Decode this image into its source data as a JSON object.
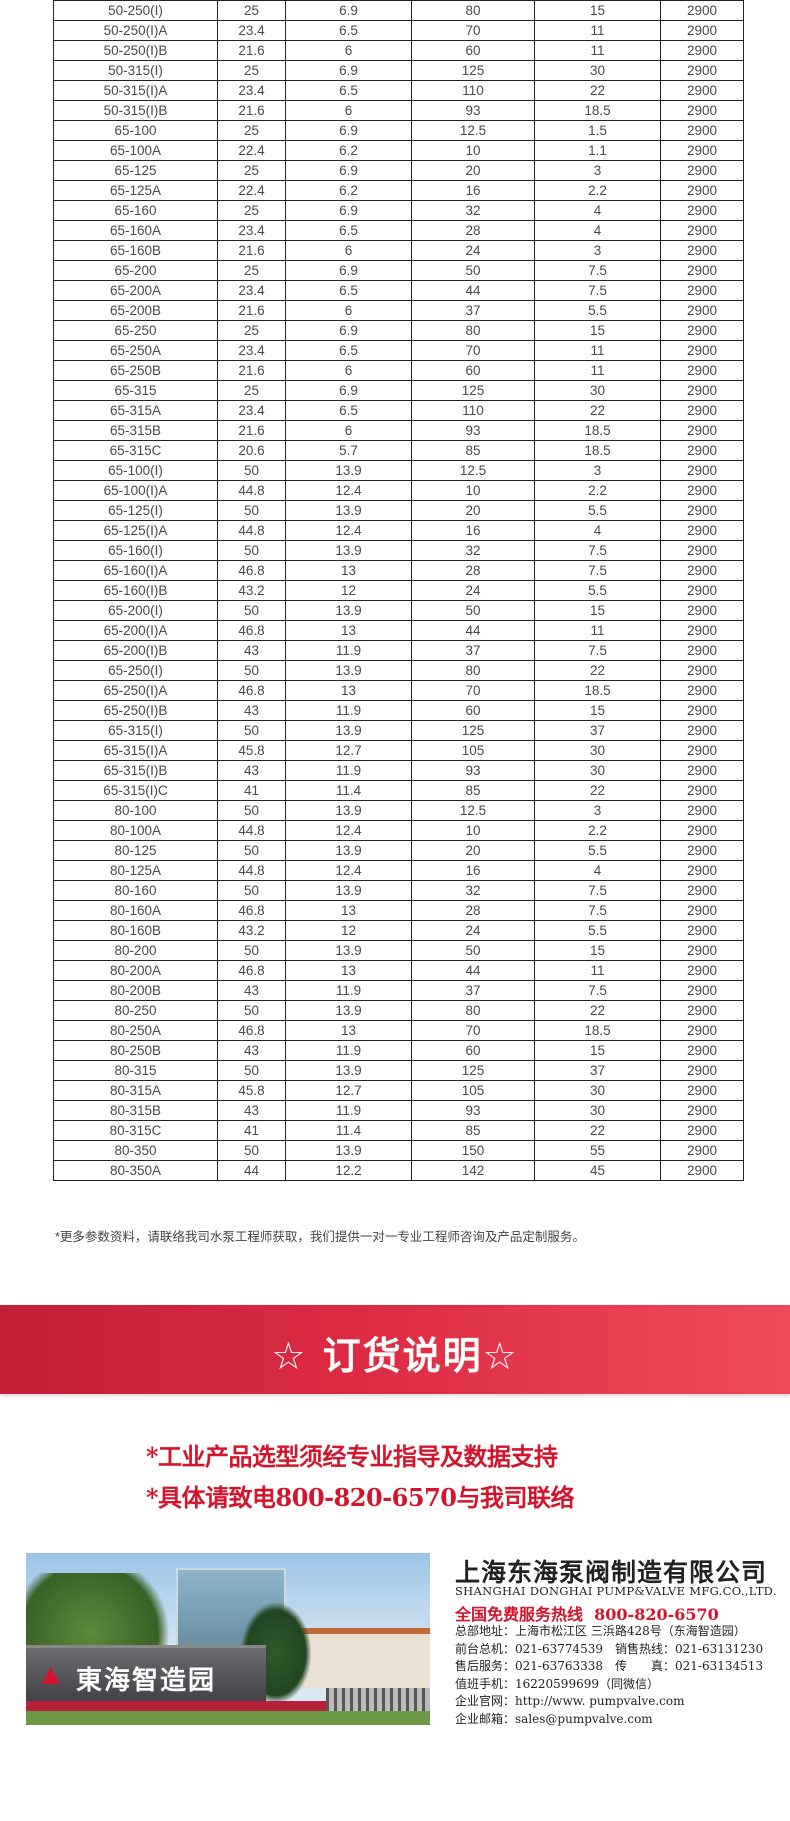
{
  "table": {
    "rows": [
      [
        "50-250(I)",
        "25",
        "6.9",
        "80",
        "15",
        "2900"
      ],
      [
        "50-250(I)A",
        "23.4",
        "6.5",
        "70",
        "11",
        "2900"
      ],
      [
        "50-250(I)B",
        "21.6",
        "6",
        "60",
        "11",
        "2900"
      ],
      [
        "50-315(I)",
        "25",
        "6.9",
        "125",
        "30",
        "2900"
      ],
      [
        "50-315(I)A",
        "23.4",
        "6.5",
        "110",
        "22",
        "2900"
      ],
      [
        "50-315(I)B",
        "21.6",
        "6",
        "93",
        "18.5",
        "2900"
      ],
      [
        "65-100",
        "25",
        "6.9",
        "12.5",
        "1.5",
        "2900"
      ],
      [
        "65-100A",
        "22.4",
        "6.2",
        "10",
        "1.1",
        "2900"
      ],
      [
        "65-125",
        "25",
        "6.9",
        "20",
        "3",
        "2900"
      ],
      [
        "65-125A",
        "22.4",
        "6.2",
        "16",
        "2.2",
        "2900"
      ],
      [
        "65-160",
        "25",
        "6.9",
        "32",
        "4",
        "2900"
      ],
      [
        "65-160A",
        "23.4",
        "6.5",
        "28",
        "4",
        "2900"
      ],
      [
        "65-160B",
        "21.6",
        "6",
        "24",
        "3",
        "2900"
      ],
      [
        "65-200",
        "25",
        "6.9",
        "50",
        "7.5",
        "2900"
      ],
      [
        "65-200A",
        "23.4",
        "6.5",
        "44",
        "7.5",
        "2900"
      ],
      [
        "65-200B",
        "21.6",
        "6",
        "37",
        "5.5",
        "2900"
      ],
      [
        "65-250",
        "25",
        "6.9",
        "80",
        "15",
        "2900"
      ],
      [
        "65-250A",
        "23.4",
        "6.5",
        "70",
        "11",
        "2900"
      ],
      [
        "65-250B",
        "21.6",
        "6",
        "60",
        "11",
        "2900"
      ],
      [
        "65-315",
        "25",
        "6.9",
        "125",
        "30",
        "2900"
      ],
      [
        "65-315A",
        "23.4",
        "6.5",
        "110",
        "22",
        "2900"
      ],
      [
        "65-315B",
        "21.6",
        "6",
        "93",
        "18.5",
        "2900"
      ],
      [
        "65-315C",
        "20.6",
        "5.7",
        "85",
        "18.5",
        "2900"
      ],
      [
        "65-100(I)",
        "50",
        "13.9",
        "12.5",
        "3",
        "2900"
      ],
      [
        "65-100(I)A",
        "44.8",
        "12.4",
        "10",
        "2.2",
        "2900"
      ],
      [
        "65-125(I)",
        "50",
        "13.9",
        "20",
        "5.5",
        "2900"
      ],
      [
        "65-125(I)A",
        "44.8",
        "12.4",
        "16",
        "4",
        "2900"
      ],
      [
        "65-160(I)",
        "50",
        "13.9",
        "32",
        "7.5",
        "2900"
      ],
      [
        "65-160(I)A",
        "46.8",
        "13",
        "28",
        "7.5",
        "2900"
      ],
      [
        "65-160(I)B",
        "43.2",
        "12",
        "24",
        "5.5",
        "2900"
      ],
      [
        "65-200(I)",
        "50",
        "13.9",
        "50",
        "15",
        "2900"
      ],
      [
        "65-200(I)A",
        "46.8",
        "13",
        "44",
        "11",
        "2900"
      ],
      [
        "65-200(I)B",
        "43",
        "11.9",
        "37",
        "7.5",
        "2900"
      ],
      [
        "65-250(I)",
        "50",
        "13.9",
        "80",
        "22",
        "2900"
      ],
      [
        "65-250(I)A",
        "46.8",
        "13",
        "70",
        "18.5",
        "2900"
      ],
      [
        "65-250(I)B",
        "43",
        "11.9",
        "60",
        "15",
        "2900"
      ],
      [
        "65-315(I)",
        "50",
        "13.9",
        "125",
        "37",
        "2900"
      ],
      [
        "65-315(I)A",
        "45.8",
        "12.7",
        "105",
        "30",
        "2900"
      ],
      [
        "65-315(I)B",
        "43",
        "11.9",
        "93",
        "30",
        "2900"
      ],
      [
        "65-315(I)C",
        "41",
        "11.4",
        "85",
        "22",
        "2900"
      ],
      [
        "80-100",
        "50",
        "13.9",
        "12.5",
        "3",
        "2900"
      ],
      [
        "80-100A",
        "44.8",
        "12.4",
        "10",
        "2.2",
        "2900"
      ],
      [
        "80-125",
        "50",
        "13.9",
        "20",
        "5.5",
        "2900"
      ],
      [
        "80-125A",
        "44.8",
        "12.4",
        "16",
        "4",
        "2900"
      ],
      [
        "80-160",
        "50",
        "13.9",
        "32",
        "7.5",
        "2900"
      ],
      [
        "80-160A",
        "46.8",
        "13",
        "28",
        "7.5",
        "2900"
      ],
      [
        "80-160B",
        "43.2",
        "12",
        "24",
        "5.5",
        "2900"
      ],
      [
        "80-200",
        "50",
        "13.9",
        "50",
        "15",
        "2900"
      ],
      [
        "80-200A",
        "46.8",
        "13",
        "44",
        "11",
        "2900"
      ],
      [
        "80-200B",
        "43",
        "11.9",
        "37",
        "7.5",
        "2900"
      ],
      [
        "80-250",
        "50",
        "13.9",
        "80",
        "22",
        "2900"
      ],
      [
        "80-250A",
        "46.8",
        "13",
        "70",
        "18.5",
        "2900"
      ],
      [
        "80-250B",
        "43",
        "11.9",
        "60",
        "15",
        "2900"
      ],
      [
        "80-315",
        "50",
        "13.9",
        "125",
        "37",
        "2900"
      ],
      [
        "80-315A",
        "45.8",
        "12.7",
        "105",
        "30",
        "2900"
      ],
      [
        "80-315B",
        "43",
        "11.9",
        "93",
        "30",
        "2900"
      ],
      [
        "80-315C",
        "41",
        "11.4",
        "85",
        "22",
        "2900"
      ],
      [
        "80-350",
        "50",
        "13.9",
        "150",
        "55",
        "2900"
      ],
      [
        "80-350A",
        "44",
        "12.2",
        "142",
        "45",
        "2900"
      ]
    ]
  },
  "note": "*更多参数资料，请联络我司水泵工程师获取，我们提供一对一专业工程师咨询及产品定制服务。",
  "banner": {
    "title": "☆ 订货说明☆"
  },
  "order_lines": [
    "*工业产品选型须经专业指导及数据支持",
    "*具体请致电800-820-6570与我司联络"
  ],
  "footer": {
    "photo_sign": "東海智造园",
    "company_cn": "上海东海泵阀制造有限公司",
    "company_en": "SHANGHAI DONGHAI PUMP&VALVE MFG.CO.,LTD.",
    "hotline_label": "全国免费服务热线",
    "hotline": "800-820-6570",
    "lines": [
      "总部地址：上海市松江区 三浜路428号（东海智造园）",
      "前台总机：021-63774539　销售热线：021-63131230",
      "售后服务：021-63763338　传　　真：021-63134513",
      "值班手机：16220599699（同微信）",
      "企业官网：http://www. pumpvalve.com",
      "企业邮箱：sales@pumpvalve.com"
    ]
  },
  "colors": {
    "accent_red": "#d3142c",
    "banner_red": "#dc2b43",
    "table_border": "#222222"
  }
}
